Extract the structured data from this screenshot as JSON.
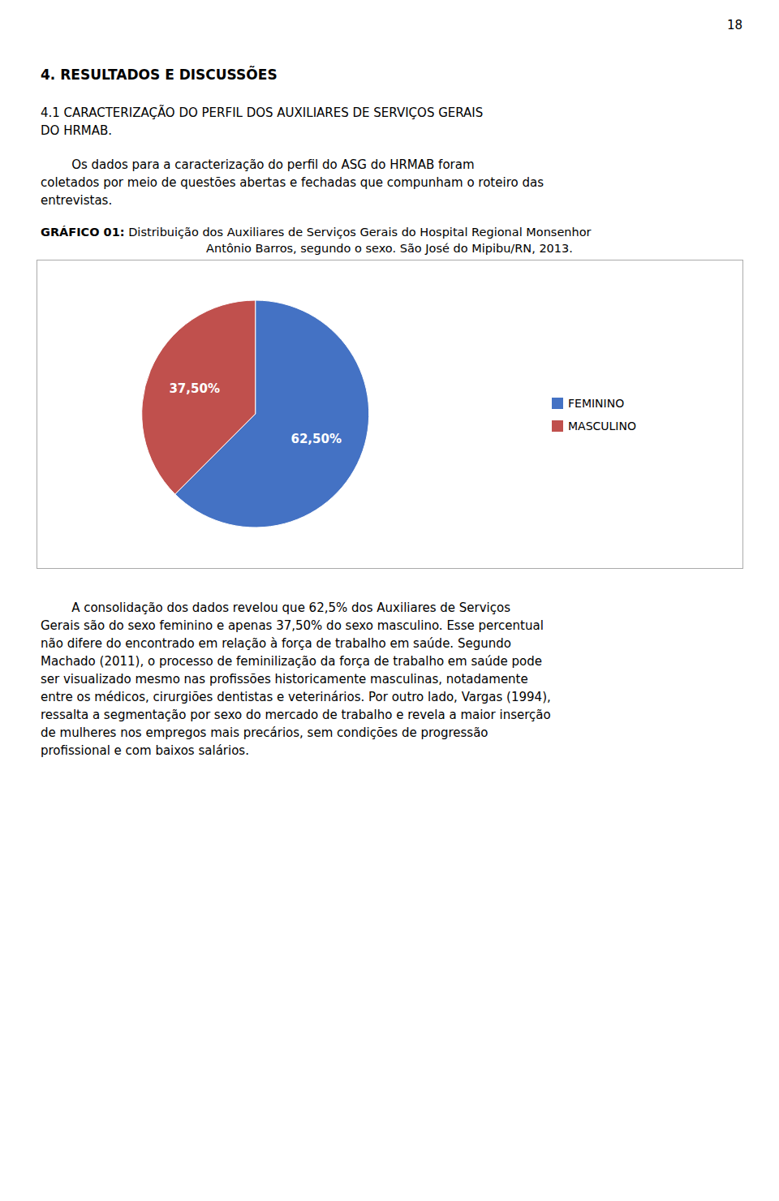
{
  "page_number": "18",
  "section_title": "4. RESULTADOS E DISCUSSÕES",
  "subsection_title": [
    "4.1 CARACTERIZAÇÃO DO PERFIL DOS AUXILIARES DE SERVIÇOS GERAIS",
    "DO HRMAB."
  ],
  "para1": [
    "        Os dados para a caracterização do perfil do ASG do HRMAB foram",
    "coletados por meio de questões abertas e fechadas que compunham o roteiro das",
    "entrevistas."
  ],
  "caption": [
    "GRÁFICO 01:",
    " Distribuição dos Auxiliares de Serviços Gerais do Hospital Regional Monsenhor",
    "Antônio Barros, segundo o sexo. São José do Mipibu/RN, 2013."
  ],
  "para2": [
    "        A consolidação dos dados revelou que 62,5% dos Auxiliares de Serviços",
    "Gerais são do sexo feminino e apenas 37,50% do sexo masculino. Esse percentual",
    "não difere do encontrado em relação à força de trabalho em saúde. Segundo",
    "Machado (2011), o processo de feminilização da força de trabalho em saúde pode",
    "ser visualizado mesmo nas profissões historicamente masculinas, notadamente",
    "entre os médicos, cirurgiões dentistas e veterinários. Por outro lado, Vargas (1994),",
    "ressalta a segmentação por sexo do mercado de trabalho e revela a maior inserção",
    "de mulheres nos empregos mais precários, sem condições de progressão",
    "profissional e com baixos salários."
  ],
  "chart_data": {
    "type": "pie",
    "categories": [
      "FEMININO",
      "MASCULINO"
    ],
    "values": [
      62.5,
      37.5
    ],
    "value_labels": [
      "62,50%",
      "37,50%"
    ],
    "colors": [
      "#4472C4",
      "#C0504D"
    ],
    "data_labels": true,
    "legend": "right"
  }
}
